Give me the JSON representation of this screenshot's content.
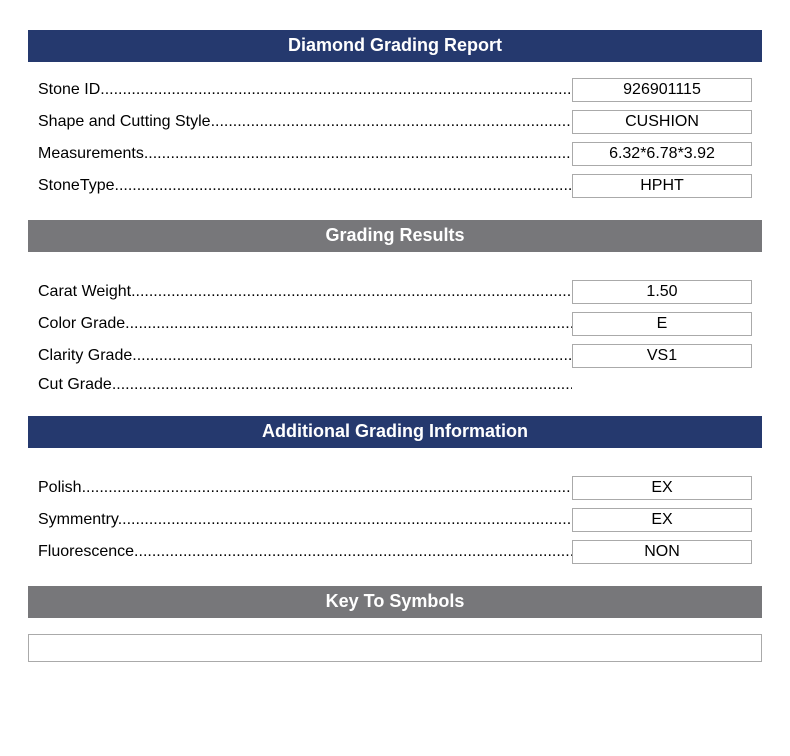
{
  "colors": {
    "navy": "#25396e",
    "gray": "#77777a",
    "border": "#aaaaaa",
    "text": "#000000",
    "header_text": "#ffffff"
  },
  "sections": {
    "main": {
      "title": "Diamond Grading Report",
      "rows": [
        {
          "label": "Stone ID",
          "value": "926901115"
        },
        {
          "label": "Shape and Cutting Style",
          "value": "CUSHION"
        },
        {
          "label": "Measurements",
          "value": "6.32*6.78*3.92"
        },
        {
          "label": "StoneType",
          "value": "HPHT"
        }
      ]
    },
    "grading": {
      "title": "Grading Results",
      "rows": [
        {
          "label": "Carat Weight",
          "value": "1.50"
        },
        {
          "label": "Color Grade",
          "value": "E"
        },
        {
          "label": "Clarity Grade",
          "value": "VS1"
        },
        {
          "label": "Cut Grade",
          "value": null
        }
      ]
    },
    "additional": {
      "title": "Additional Grading Information",
      "rows": [
        {
          "label": "Polish",
          "value": "EX"
        },
        {
          "label": "Symmentry",
          "value": "EX"
        },
        {
          "label": "Fluorescence",
          "value": "NON"
        }
      ]
    },
    "symbols": {
      "title": "Key To Symbols"
    }
  }
}
